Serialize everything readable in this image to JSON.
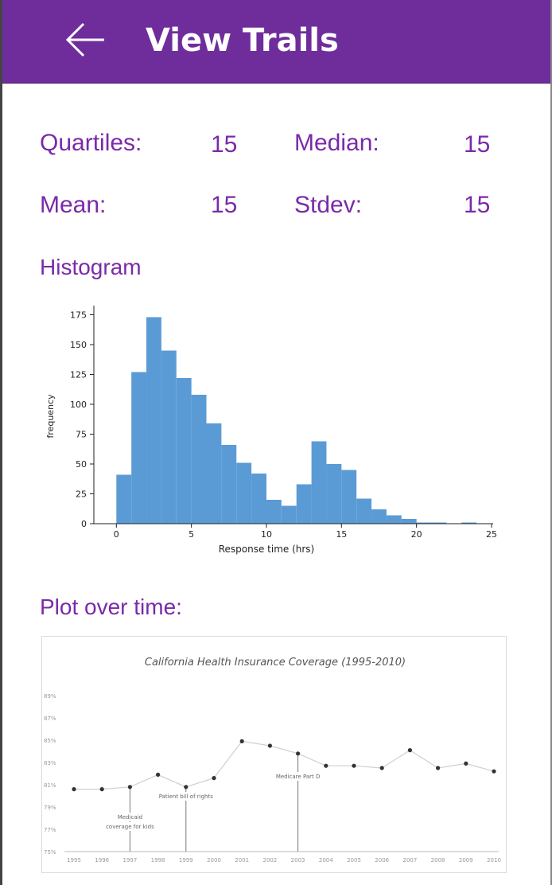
{
  "header": {
    "title": "View Trails",
    "back_icon": "arrow-left-icon"
  },
  "stats": {
    "quartiles_label": "Quartiles:",
    "quartiles_value": "15",
    "median_label": "Median:",
    "median_value": "15",
    "mean_label": "Mean:",
    "mean_value": "15",
    "stdev_label": "Stdev:",
    "stdev_value": "15"
  },
  "histogram_title": "Histogram",
  "plot_title": "Plot over time:",
  "colors": {
    "header": "#6f2d9c",
    "accent_text": "#7a2aa8",
    "bar": "#5b9bd5"
  },
  "chart_data": [
    {
      "type": "bar",
      "title": "",
      "xlabel": "Response time (hrs)",
      "ylabel": "frequency",
      "xlim": [
        -1.5,
        25
      ],
      "ylim": [
        0,
        180
      ],
      "xticks": [
        0,
        5,
        10,
        15,
        20,
        25
      ],
      "yticks": [
        0,
        25,
        50,
        75,
        100,
        125,
        150,
        175
      ],
      "bin_width": 1,
      "bin_starts": [
        0,
        1,
        2,
        3,
        4,
        5,
        6,
        7,
        8,
        9,
        10,
        11,
        12,
        13,
        14,
        15,
        16,
        17,
        18,
        19,
        20,
        21,
        22,
        23,
        24
      ],
      "values": [
        41,
        127,
        173,
        145,
        122,
        108,
        84,
        66,
        51,
        42,
        20,
        15,
        33,
        69,
        50,
        45,
        21,
        12,
        7,
        4,
        1,
        1,
        0,
        1,
        0
      ],
      "grid": false
    },
    {
      "type": "line",
      "title": "California Health Insurance Coverage (1995-2010)",
      "x": [
        1995,
        1996,
        1997,
        1998,
        1999,
        2000,
        2001,
        2002,
        2003,
        2004,
        2005,
        2006,
        2007,
        2008,
        2009,
        2010
      ],
      "y": [
        80.6,
        80.6,
        80.8,
        81.9,
        80.8,
        81.6,
        84.9,
        84.5,
        83.8,
        82.7,
        82.7,
        82.5,
        84.1,
        82.5,
        82.9,
        82.2
      ],
      "ylim": [
        75,
        90
      ],
      "yticks": [
        "75%",
        "77%",
        "79%",
        "81%",
        "83%",
        "85%",
        "87%",
        "89%"
      ],
      "xticks": [
        "1995",
        "1996",
        "1997",
        "1998",
        "1999",
        "2000",
        "2001",
        "2002",
        "2003",
        "2004",
        "2005",
        "2006",
        "2007",
        "2008",
        "2009",
        "2010"
      ],
      "annotations": [
        {
          "year": 1997,
          "text_lines": [
            "Medicaid",
            "coverage for kids"
          ]
        },
        {
          "year": 1999,
          "text_lines": [
            "Patient bill of rights"
          ]
        },
        {
          "year": 2003,
          "text_lines": [
            "Medicare Part D"
          ]
        }
      ],
      "grid": false
    }
  ]
}
